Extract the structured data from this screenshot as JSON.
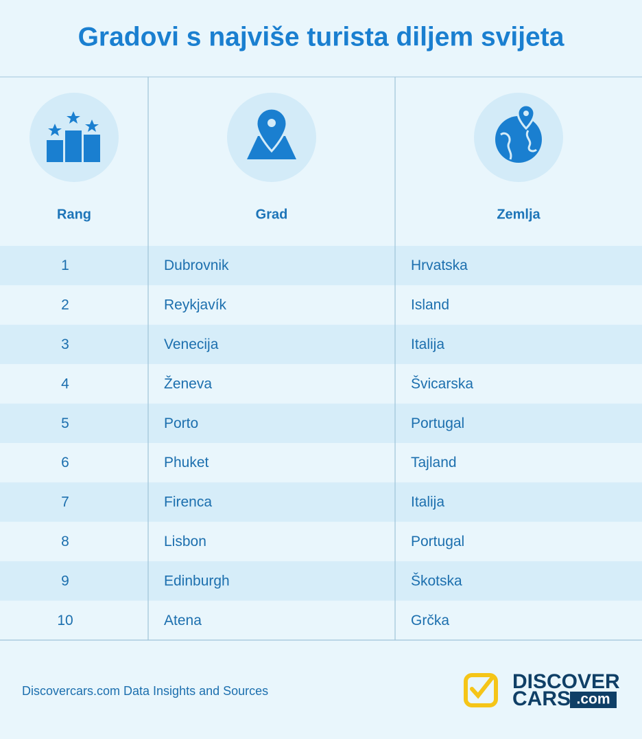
{
  "title": "Gradovi s najviše turista diljem svijeta",
  "table": {
    "headers": [
      "Rang",
      "Grad",
      "Zemlja"
    ],
    "rows": [
      [
        1,
        "Dubrovnik",
        "Hrvatska"
      ],
      [
        2,
        "Reykjavík",
        "Island"
      ],
      [
        3,
        "Venecija",
        "Italija"
      ],
      [
        4,
        "Ženeva",
        "Švicarska"
      ],
      [
        5,
        "Porto",
        "Portugal"
      ],
      [
        6,
        "Phuket",
        "Tajland"
      ],
      [
        7,
        "Firenca",
        "Italija"
      ],
      [
        8,
        "Lisbon",
        "Portugal"
      ],
      [
        9,
        "Edinburgh",
        "Škotska"
      ],
      [
        10,
        "Atena",
        "Grčka"
      ]
    ]
  },
  "footer": {
    "source": "Discovercars.com Data Insights and Sources",
    "logo": {
      "line1": "DISCOVER",
      "line2": "CARS",
      "suffix": ".com"
    }
  }
}
